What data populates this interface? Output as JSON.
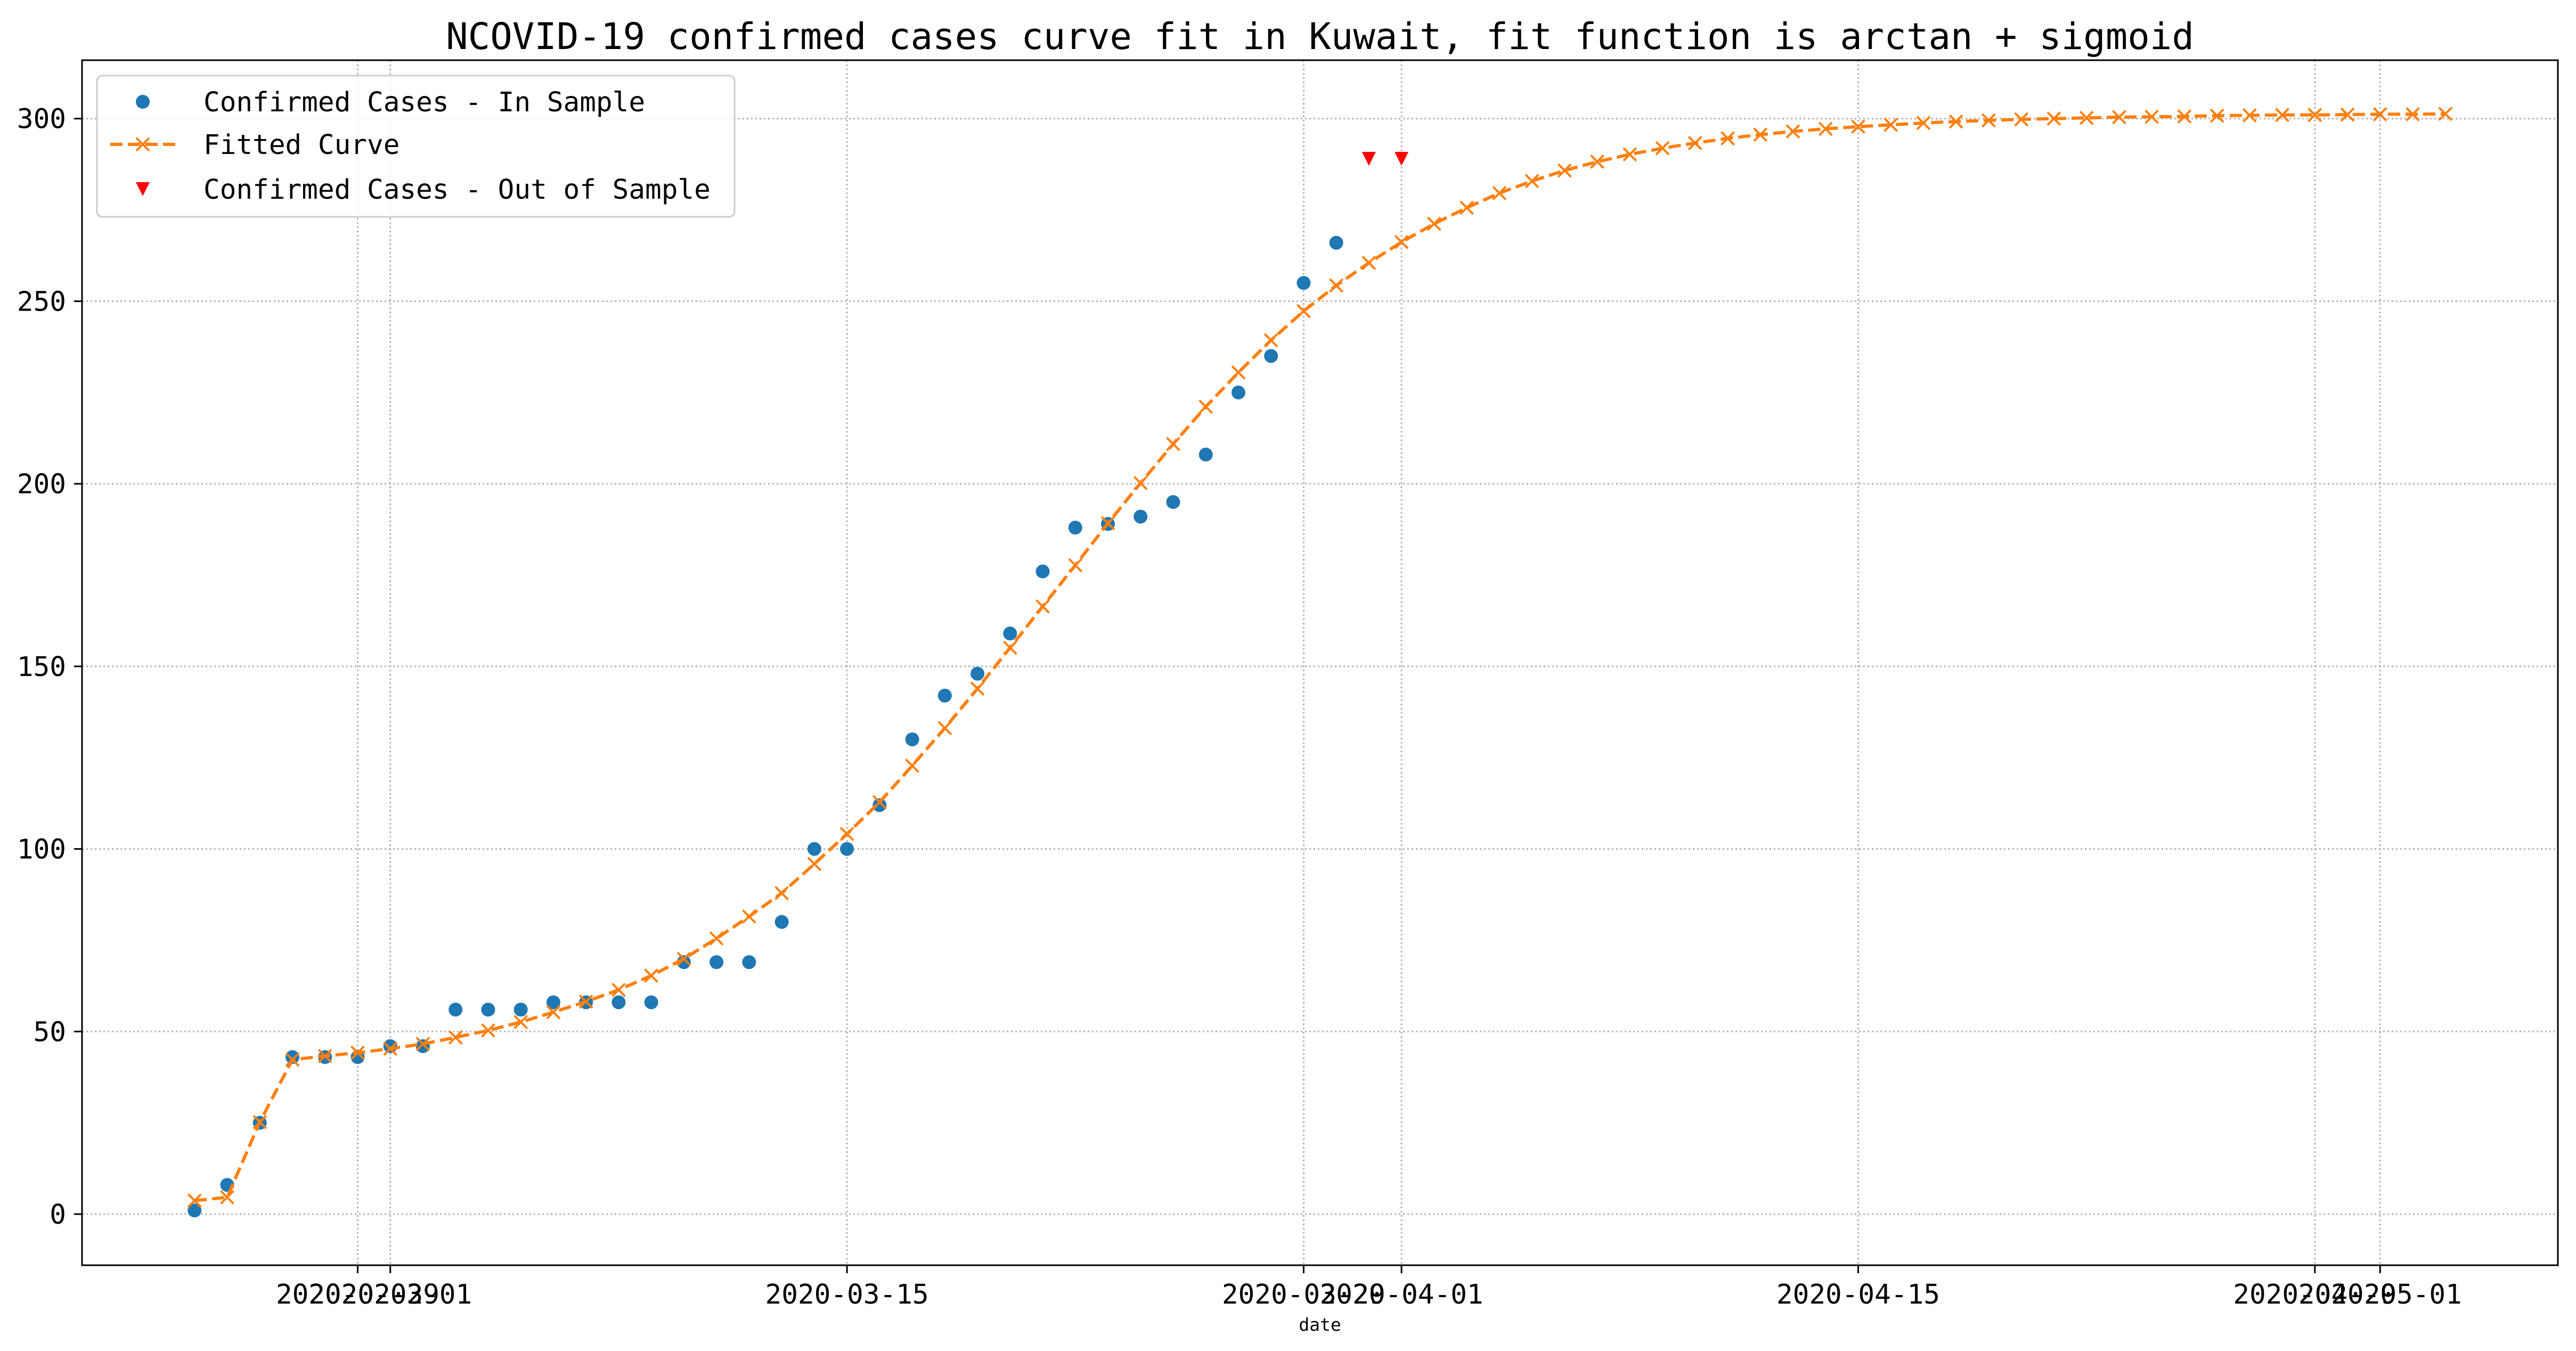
{
  "chart_data": {
    "type": "line",
    "title": "NCOVID-19 confirmed cases curve fit in Kuwait, fit function is arctan + sigmoid",
    "xlabel": "date",
    "xlim": [
      "2020-02-20T13:12",
      "2020-05-06T10:48"
    ],
    "ylim": [
      -14,
      316
    ],
    "xticks": [
      "2020-02-29",
      "2020-03-01",
      "2020-03-15",
      "2020-03-29",
      "2020-04-01",
      "2020-04-15",
      "2020-04-29",
      "2020-05-01"
    ],
    "yticks": [
      0,
      50,
      100,
      150,
      200,
      250,
      300
    ],
    "grid": true,
    "legend": "upper-left",
    "series": [
      {
        "name": "Confirmed Cases - In Sample",
        "marker": "circle",
        "linestyle": "none",
        "color": "#1f77b4",
        "x": [
          "2020-02-24",
          "2020-02-25",
          "2020-02-26",
          "2020-02-27",
          "2020-02-28",
          "2020-02-29",
          "2020-03-01",
          "2020-03-02",
          "2020-03-03",
          "2020-03-04",
          "2020-03-05",
          "2020-03-06",
          "2020-03-07",
          "2020-03-08",
          "2020-03-09",
          "2020-03-10",
          "2020-03-11",
          "2020-03-12",
          "2020-03-13",
          "2020-03-14",
          "2020-03-15",
          "2020-03-16",
          "2020-03-17",
          "2020-03-18",
          "2020-03-19",
          "2020-03-20",
          "2020-03-21",
          "2020-03-22",
          "2020-03-23",
          "2020-03-24",
          "2020-03-25",
          "2020-03-26",
          "2020-03-27",
          "2020-03-28",
          "2020-03-29",
          "2020-03-30"
        ],
        "y": [
          1,
          8,
          25,
          43,
          43,
          43,
          46,
          46,
          56,
          56,
          56,
          58,
          58,
          58,
          58,
          69,
          69,
          69,
          80,
          100,
          100,
          112,
          130,
          142,
          148,
          159,
          176,
          188,
          189,
          191,
          195,
          208,
          225,
          235,
          255,
          266
        ]
      },
      {
        "name": "Fitted Curve",
        "marker": "x",
        "linestyle": "dashed",
        "color": "#ff7f0e",
        "x": [
          "2020-02-24",
          "2020-02-25",
          "2020-02-26",
          "2020-02-27",
          "2020-02-28",
          "2020-02-29",
          "2020-03-01",
          "2020-03-02",
          "2020-03-03",
          "2020-03-04",
          "2020-03-05",
          "2020-03-06",
          "2020-03-07",
          "2020-03-08",
          "2020-03-09",
          "2020-03-10",
          "2020-03-11",
          "2020-03-12",
          "2020-03-13",
          "2020-03-14",
          "2020-03-15",
          "2020-03-16",
          "2020-03-17",
          "2020-03-18",
          "2020-03-19",
          "2020-03-20",
          "2020-03-21",
          "2020-03-22",
          "2020-03-23",
          "2020-03-24",
          "2020-03-25",
          "2020-03-26",
          "2020-03-27",
          "2020-03-28",
          "2020-03-29",
          "2020-03-30",
          "2020-03-31",
          "2020-04-01",
          "2020-04-02",
          "2020-04-03",
          "2020-04-04",
          "2020-04-05",
          "2020-04-06",
          "2020-04-07",
          "2020-04-08",
          "2020-04-09",
          "2020-04-10",
          "2020-04-11",
          "2020-04-12",
          "2020-04-13",
          "2020-04-14",
          "2020-04-15",
          "2020-04-16",
          "2020-04-17",
          "2020-04-18",
          "2020-04-19",
          "2020-04-20",
          "2020-04-21",
          "2020-04-22",
          "2020-04-23",
          "2020-04-24",
          "2020-04-25",
          "2020-04-26",
          "2020-04-27",
          "2020-04-28",
          "2020-04-29",
          "2020-04-30",
          "2020-05-01",
          "2020-05-02",
          "2020-05-03"
        ],
        "y": [
          3.7,
          4.6,
          25.2,
          42.3,
          43.3,
          44.2,
          45.3,
          46.6,
          48.4,
          50.3,
          52.6,
          55.3,
          58.2,
          61.4,
          65.3,
          69.9,
          75.5,
          81.5,
          87.9,
          95.9,
          104.1,
          112.8,
          122.8,
          133.1,
          143.9,
          155.1,
          166.4,
          177.7,
          189.2,
          200.2,
          210.9,
          221.1,
          230.5,
          239.3,
          247.3,
          254.3,
          260.5,
          266.2,
          271.2,
          275.6,
          279.6,
          282.9,
          285.8,
          288.2,
          290.2,
          291.9,
          293.3,
          294.6,
          295.6,
          296.5,
          297.2,
          297.8,
          298.3,
          298.8,
          299.2,
          299.5,
          299.8,
          300.0,
          300.2,
          300.4,
          300.5,
          300.6,
          300.8,
          300.9,
          301.0,
          301.0,
          301.1,
          301.2,
          301.2,
          301.3
        ]
      },
      {
        "name": "Confirmed Cases - Out of Sample",
        "marker": "triangle-down",
        "linestyle": "none",
        "color": "#ff0000",
        "x": [
          "2020-03-31",
          "2020-04-01"
        ],
        "y": [
          289,
          289
        ]
      }
    ]
  }
}
